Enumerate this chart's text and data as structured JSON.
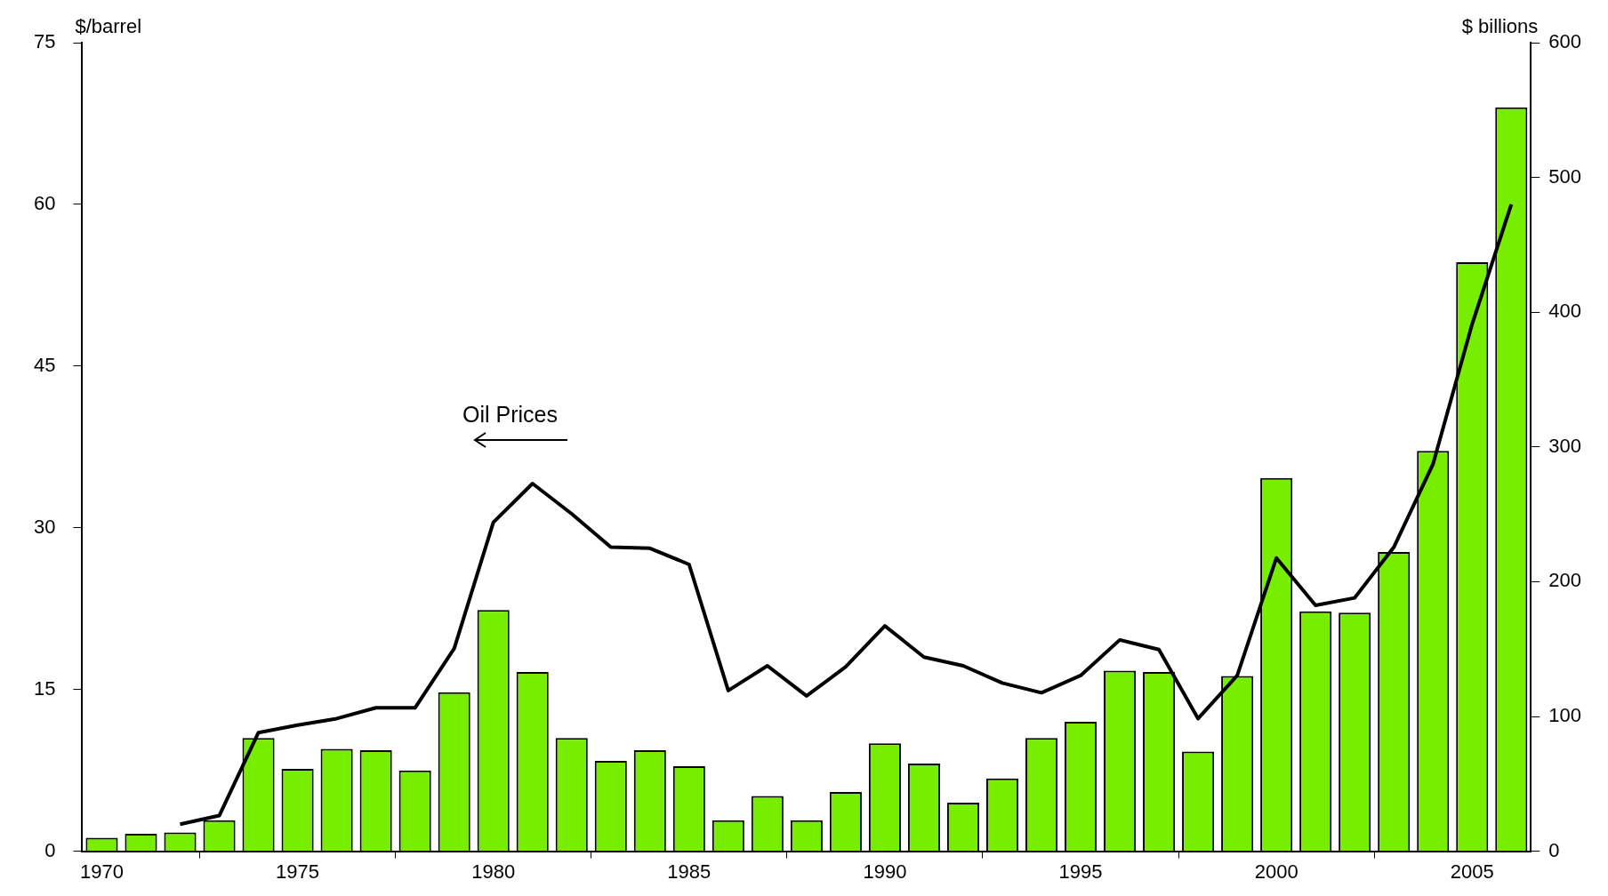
{
  "chart_data": {
    "type": "bar",
    "ylabel": "$/barrel",
    "y2label": "$ billions",
    "x": [
      1970,
      1971,
      1972,
      1973,
      1974,
      1975,
      1976,
      1977,
      1978,
      1979,
      1980,
      1981,
      1982,
      1983,
      1984,
      1985,
      1986,
      1987,
      1988,
      1989,
      1990,
      1991,
      1992,
      1993,
      1994,
      1995,
      1996,
      1997,
      1998,
      1999,
      2000,
      2001,
      2002,
      2003,
      2004,
      2005,
      2006
    ],
    "series": [
      {
        "axis": "y2",
        "color": "#77ee00",
        "values": [
          10,
          13,
          14,
          23,
          84,
          61,
          76,
          75,
          60,
          118,
          179,
          133,
          84,
          67,
          75,
          63,
          23,
          41,
          23,
          44,
          80,
          65,
          36,
          54,
          84,
          96,
          134,
          133,
          74,
          130,
          277,
          178,
          177,
          222,
          297,
          437,
          552
        ]
      },
      {
        "type": "line",
        "axis": "y",
        "color": "#000000",
        "values": [
          null,
          null,
          2.5,
          3.3,
          11.0,
          11.7,
          12.3,
          13.3,
          13.3,
          18.8,
          30.5,
          34.1,
          31.3,
          28.2,
          28.1,
          26.6,
          14.9,
          17.2,
          14.4,
          17.1,
          20.9,
          18.0,
          17.2,
          15.6,
          14.7,
          16.3,
          19.6,
          18.7,
          12.3,
          16.3,
          27.2,
          22.8,
          23.5,
          28.2,
          35.9,
          48.9,
          60.0
        ]
      }
    ],
    "xlim": [
      1969.5,
      2006.5
    ],
    "xticks": [
      1970,
      1975,
      1980,
      1985,
      1990,
      1995,
      2000,
      2005
    ],
    "ylim": [
      0,
      75
    ],
    "yticks": [
      0,
      15,
      30,
      45,
      60,
      75
    ],
    "y2lim": [
      0,
      600
    ],
    "y2ticks": [
      0,
      100,
      200,
      300,
      400,
      500,
      600
    ],
    "annotations": [
      "Oil Prices"
    ],
    "grid": false,
    "legend": false,
    "marker": "none",
    "line_style": "solid"
  }
}
